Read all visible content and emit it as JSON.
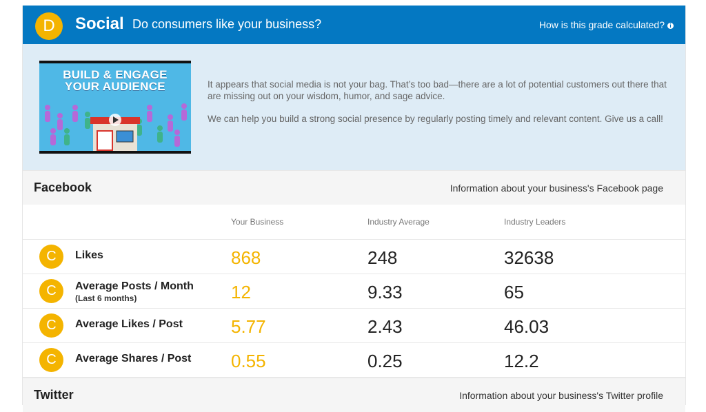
{
  "header": {
    "grade": "D",
    "title": "Social",
    "subtitle": "Do consumers like your business?",
    "link": "How is this grade calculated?",
    "info_icon": "info-icon",
    "bg_color": "#0478c2",
    "grade_color": "#f4b400"
  },
  "promo": {
    "video_title_line1": "BUILD & ENGAGE",
    "video_title_line2": "YOUR AUDIENCE",
    "paragraph1": "It appears that social media is not your bag. That’s too bad—there are a lot of potential customers out there that are missing out on your wisdom, humor, and sage advice.",
    "paragraph2": "We can help you build a strong social presence by regularly posting timely and relevant content. Give us a call!"
  },
  "facebook": {
    "title": "Facebook",
    "info": "Information about your business's Facebook page",
    "columns": [
      "Your Business",
      "Industry Average",
      "Industry Leaders"
    ],
    "rows": [
      {
        "grade": "C",
        "metric": "Likes",
        "note": "",
        "yours": "868",
        "avg": "248",
        "leaders": "32638"
      },
      {
        "grade": "C",
        "metric": "Average Posts / Month",
        "note": "(Last 6 months)",
        "yours": "12",
        "avg": "9.33",
        "leaders": "65"
      },
      {
        "grade": "C",
        "metric": "Average Likes / Post",
        "note": "",
        "yours": "5.77",
        "avg": "2.43",
        "leaders": "46.03"
      },
      {
        "grade": "C",
        "metric": "Average Shares / Post",
        "note": "",
        "yours": "0.55",
        "avg": "0.25",
        "leaders": "12.2"
      }
    ]
  },
  "twitter": {
    "title": "Twitter",
    "info": "Information about your business's Twitter profile"
  }
}
